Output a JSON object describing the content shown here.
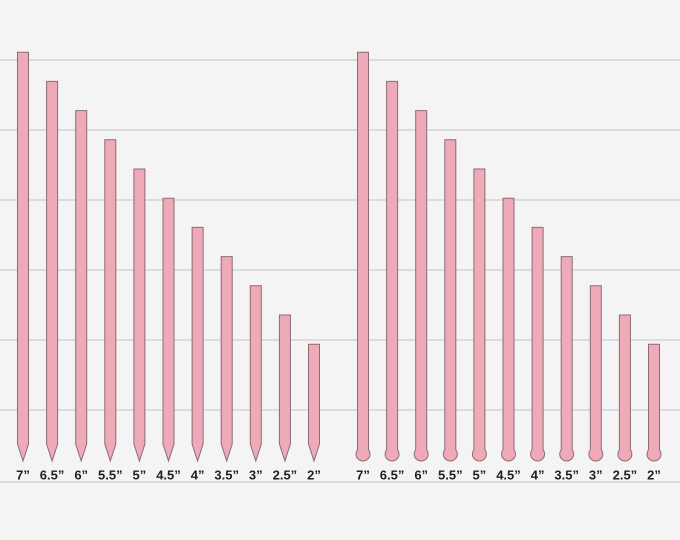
{
  "groups": [
    {
      "tip": "pointed",
      "labels": [
        "7”",
        "6.5”",
        "6”",
        "5.5”",
        "5”",
        "4.5”",
        "4”",
        "3.5”",
        "3”",
        "2.5”",
        "2”"
      ],
      "lengths": [
        7,
        6.5,
        6,
        5.5,
        5,
        4.5,
        4,
        3.5,
        3,
        2.5,
        2
      ]
    },
    {
      "tip": "round",
      "labels": [
        "7”",
        "6.5”",
        "6”",
        "5.5”",
        "5”",
        "4.5”",
        "4”",
        "3.5”",
        "3”",
        "2.5”",
        "2”"
      ],
      "lengths": [
        7,
        6.5,
        6,
        5.5,
        5,
        4.5,
        4,
        3.5,
        3,
        2.5,
        2
      ]
    }
  ]
}
